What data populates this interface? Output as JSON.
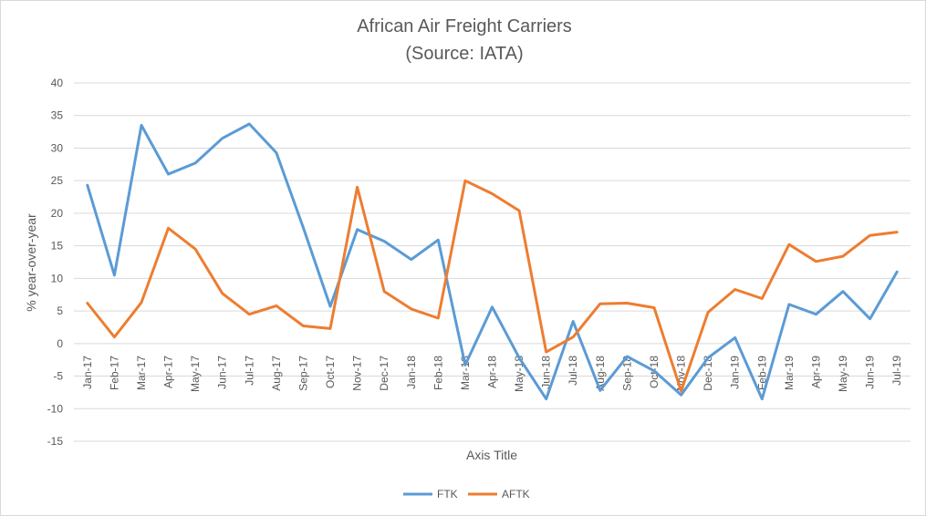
{
  "chart_data": {
    "type": "line",
    "title": "African Air Freight Carriers",
    "subtitle": "(Source: IATA)",
    "xlabel": "Axis Title",
    "ylabel": "% year-over-year",
    "ylim": [
      -15,
      40
    ],
    "yticks": [
      40,
      35,
      30,
      25,
      20,
      15,
      10,
      5,
      0,
      -5,
      -10,
      -15
    ],
    "grid": true,
    "legend_position": "bottom",
    "categories": [
      "Jan-17",
      "Feb-17",
      "Mar-17",
      "Apr-17",
      "May-17",
      "Jun-17",
      "Jul-17",
      "Aug-17",
      "Sep-17",
      "Oct-17",
      "Nov-17",
      "Dec-17",
      "Jan-18",
      "Feb-18",
      "Mar-18",
      "Apr-18",
      "May-18",
      "Jun-18",
      "Jul-18",
      "Aug-18",
      "Sep-18",
      "Oct-18",
      "Nov-18",
      "Dec-18",
      "Jan-19",
      "Feb-19",
      "Mar-19",
      "Apr-19",
      "May-19",
      "Jun-19",
      "Jul-19"
    ],
    "series": [
      {
        "name": "FTK",
        "color": "#5b9bd5",
        "values": [
          24.3,
          10.5,
          33.5,
          26.0,
          27.7,
          31.5,
          33.7,
          29.3,
          17.8,
          5.7,
          17.5,
          15.7,
          12.9,
          15.9,
          -3.3,
          5.6,
          -2.2,
          -8.5,
          3.4,
          -7.2,
          -2.0,
          -4.2,
          -7.9,
          -2.2,
          0.9,
          -8.5,
          6.0,
          4.5,
          8.0,
          3.8,
          11.0
        ]
      },
      {
        "name": "AFTK",
        "color": "#ed7d31",
        "values": [
          6.2,
          1.0,
          6.3,
          17.7,
          14.5,
          7.7,
          4.5,
          5.8,
          2.7,
          2.3,
          24.0,
          8.0,
          5.3,
          3.9,
          25.0,
          23.0,
          20.4,
          -1.3,
          1.0,
          6.1,
          6.2,
          5.5,
          -7.3,
          4.8,
          8.3,
          6.9,
          15.2,
          12.6,
          13.4,
          16.6,
          17.1
        ]
      }
    ]
  }
}
